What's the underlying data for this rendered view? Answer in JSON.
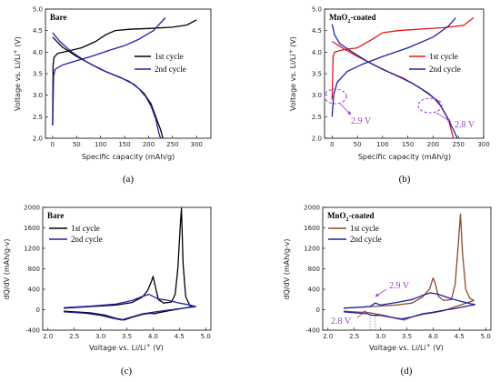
{
  "colors": {
    "black": "#000000",
    "blue": "#1f1fa8",
    "red": "#e01818",
    "brown": "#8b4a2b",
    "annotation": "#9b3fd0"
  },
  "chart_data": [
    {
      "type": "line",
      "panel_label": "(a)",
      "title": "Bare",
      "xlabel": "Specific capacity (mAh/g)",
      "ylabel": "Voltage vs. Li/Li+ (V)",
      "xlim": [
        -15,
        330
      ],
      "ylim": [
        2.0,
        5.0
      ],
      "xticks": [
        "0",
        "50",
        "100",
        "150",
        "200",
        "250",
        "300"
      ],
      "yticks": [
        "2.0",
        "2.5",
        "3.0",
        "3.5",
        "4.0",
        "4.5",
        "5.0"
      ],
      "legend_position": "right",
      "series": [
        {
          "name": "1st cycle",
          "color": "#000000",
          "charge": [
            [
              0,
              2.3
            ],
            [
              1,
              3.7
            ],
            [
              3,
              3.88
            ],
            [
              10,
              3.97
            ],
            [
              30,
              4.02
            ],
            [
              60,
              4.1
            ],
            [
              90,
              4.25
            ],
            [
              110,
              4.4
            ],
            [
              130,
              4.5
            ],
            [
              160,
              4.53
            ],
            [
              200,
              4.55
            ],
            [
              250,
              4.58
            ],
            [
              280,
              4.63
            ],
            [
              300,
              4.75
            ]
          ],
          "discharge": [
            [
              0,
              4.35
            ],
            [
              20,
              4.12
            ],
            [
              50,
              3.9
            ],
            [
              80,
              3.72
            ],
            [
              110,
              3.55
            ],
            [
              140,
              3.42
            ],
            [
              170,
              3.25
            ],
            [
              190,
              3.05
            ],
            [
              205,
              2.8
            ],
            [
              215,
              2.5
            ],
            [
              225,
              2.2
            ],
            [
              230,
              2.0
            ]
          ]
        },
        {
          "name": "2nd cycle",
          "color": "#1f1fa8",
          "charge": [
            [
              0,
              2.3
            ],
            [
              2,
              3.45
            ],
            [
              5,
              3.6
            ],
            [
              20,
              3.7
            ],
            [
              50,
              3.8
            ],
            [
              80,
              3.9
            ],
            [
              120,
              4.05
            ],
            [
              150,
              4.15
            ],
            [
              180,
              4.3
            ],
            [
              210,
              4.5
            ],
            [
              235,
              4.8
            ]
          ],
          "discharge": [
            [
              0,
              4.45
            ],
            [
              15,
              4.25
            ],
            [
              40,
              4.0
            ],
            [
              70,
              3.78
            ],
            [
              100,
              3.6
            ],
            [
              130,
              3.46
            ],
            [
              160,
              3.32
            ],
            [
              180,
              3.15
            ],
            [
              195,
              2.95
            ],
            [
              205,
              2.75
            ],
            [
              215,
              2.45
            ],
            [
              222,
              2.1
            ],
            [
              225,
              2.0
            ]
          ]
        }
      ]
    },
    {
      "type": "line",
      "panel_label": "(b)",
      "title": "MnO2-coated",
      "xlabel": "Specific capacity (mAh/g)",
      "ylabel": "Voltage vs. Li/Li+ (V)",
      "xlim": [
        -15,
        300
      ],
      "ylim": [
        2.0,
        5.0
      ],
      "xticks": [
        "0",
        "50",
        "100",
        "150",
        "200",
        "250",
        "300"
      ],
      "yticks": [
        "2.0",
        "2.5",
        "3.0",
        "3.5",
        "4.0",
        "4.5",
        "5.0"
      ],
      "legend_position": "right",
      "annotations": [
        "2.9 V",
        "2.8 V"
      ],
      "series": [
        {
          "name": "1st cycle",
          "color": "#e01818",
          "charge": [
            [
              0,
              2.9
            ],
            [
              2,
              3.9
            ],
            [
              5,
              4.0
            ],
            [
              20,
              4.05
            ],
            [
              50,
              4.1
            ],
            [
              80,
              4.3
            ],
            [
              100,
              4.45
            ],
            [
              130,
              4.5
            ],
            [
              170,
              4.53
            ],
            [
              220,
              4.57
            ],
            [
              260,
              4.62
            ],
            [
              280,
              4.8
            ]
          ],
          "discharge": [
            [
              0,
              4.25
            ],
            [
              20,
              4.1
            ],
            [
              50,
              3.9
            ],
            [
              80,
              3.72
            ],
            [
              110,
              3.55
            ],
            [
              140,
              3.4
            ],
            [
              170,
              3.2
            ],
            [
              200,
              2.95
            ],
            [
              215,
              2.75
            ],
            [
              230,
              2.45
            ],
            [
              240,
              2.0
            ]
          ]
        },
        {
          "name": "2nd cycle",
          "color": "#1f1fa8",
          "charge": [
            [
              0,
              2.5
            ],
            [
              3,
              3.0
            ],
            [
              10,
              3.3
            ],
            [
              30,
              3.55
            ],
            [
              60,
              3.72
            ],
            [
              100,
              3.9
            ],
            [
              150,
              4.1
            ],
            [
              200,
              4.35
            ],
            [
              230,
              4.6
            ],
            [
              245,
              4.8
            ]
          ],
          "discharge": [
            [
              0,
              4.65
            ],
            [
              5,
              4.4
            ],
            [
              15,
              4.2
            ],
            [
              40,
              4.0
            ],
            [
              70,
              3.78
            ],
            [
              100,
              3.6
            ],
            [
              130,
              3.44
            ],
            [
              160,
              3.27
            ],
            [
              190,
              3.05
            ],
            [
              210,
              2.85
            ],
            [
              225,
              2.55
            ],
            [
              240,
              2.2
            ],
            [
              248,
              2.0
            ]
          ]
        }
      ]
    },
    {
      "type": "line",
      "panel_label": "(c)",
      "title": "Bare",
      "xlabel": "Voltage vs. Li/Li+ (V)",
      "ylabel": "dQ/dV (mAh/g-v)",
      "xlim": [
        1.9,
        5.1
      ],
      "ylim": [
        -400,
        2000
      ],
      "xticks": [
        "2.0",
        "2.5",
        "3.0",
        "3.5",
        "4.0",
        "4.5",
        "5.0"
      ],
      "yticks": [
        "-400",
        "0",
        "400",
        "800",
        "1200",
        "1600",
        "2000"
      ],
      "legend_position": "left",
      "series": [
        {
          "name": "1st cycle",
          "color": "#000000",
          "charge": [
            [
              2.3,
              30
            ],
            [
              2.8,
              60
            ],
            [
              3.3,
              90
            ],
            [
              3.6,
              140
            ],
            [
              3.8,
              250
            ],
            [
              3.9,
              380
            ],
            [
              3.97,
              560
            ],
            [
              4.0,
              650
            ],
            [
              4.05,
              420
            ],
            [
              4.1,
              200
            ],
            [
              4.2,
              130
            ],
            [
              4.35,
              150
            ],
            [
              4.42,
              300
            ],
            [
              4.47,
              800
            ],
            [
              4.52,
              1700
            ],
            [
              4.54,
              1980
            ],
            [
              4.57,
              900
            ],
            [
              4.62,
              250
            ],
            [
              4.7,
              80
            ],
            [
              4.75,
              60
            ]
          ],
          "discharge": [
            [
              4.75,
              60
            ],
            [
              4.3,
              -20
            ],
            [
              4.1,
              -60
            ],
            [
              4.02,
              -80
            ],
            [
              3.95,
              -70
            ],
            [
              3.8,
              -90
            ],
            [
              3.6,
              -150
            ],
            [
              3.45,
              -200
            ],
            [
              3.3,
              -170
            ],
            [
              3.1,
              -110
            ],
            [
              2.8,
              -60
            ],
            [
              2.3,
              -30
            ]
          ]
        },
        {
          "name": "2nd cycle",
          "color": "#1f1fa8",
          "charge": [
            [
              2.3,
              40
            ],
            [
              2.8,
              70
            ],
            [
              3.3,
              110
            ],
            [
              3.6,
              180
            ],
            [
              3.8,
              260
            ],
            [
              3.92,
              300
            ],
            [
              4.0,
              260
            ],
            [
              4.1,
              210
            ],
            [
              4.3,
              180
            ],
            [
              4.5,
              130
            ],
            [
              4.7,
              90
            ],
            [
              4.82,
              60
            ]
          ],
          "discharge": [
            [
              4.82,
              60
            ],
            [
              4.5,
              20
            ],
            [
              4.2,
              -20
            ],
            [
              4.0,
              -50
            ],
            [
              3.8,
              -80
            ],
            [
              3.6,
              -140
            ],
            [
              3.4,
              -200
            ],
            [
              3.25,
              -170
            ],
            [
              3.0,
              -110
            ],
            [
              2.7,
              -70
            ],
            [
              2.3,
              -40
            ]
          ]
        }
      ]
    },
    {
      "type": "line",
      "panel_label": "(d)",
      "title": "MnO2-coated",
      "xlabel": "Voltage vs. Li/Li+ (V)",
      "ylabel": "dQ/dV (mAh/g-v)",
      "xlim": [
        1.9,
        5.1
      ],
      "ylim": [
        -400,
        2000
      ],
      "xticks": [
        "2.0",
        "2.5",
        "3.0",
        "3.5",
        "4.0",
        "4.5",
        "5.0"
      ],
      "yticks": [
        "-400",
        "0",
        "400",
        "800",
        "1200",
        "1600",
        "2000"
      ],
      "legend_position": "left",
      "annotations": [
        "2.9 V",
        "2.8 V"
      ],
      "series": [
        {
          "name": "1st cycle",
          "color": "#8b4a2b",
          "charge": [
            [
              2.3,
              30
            ],
            [
              2.8,
              60
            ],
            [
              3.3,
              90
            ],
            [
              3.6,
              130
            ],
            [
              3.8,
              250
            ],
            [
              3.93,
              400
            ],
            [
              4.0,
              620
            ],
            [
              4.04,
              520
            ],
            [
              4.1,
              260
            ],
            [
              4.2,
              180
            ],
            [
              4.35,
              200
            ],
            [
              4.42,
              500
            ],
            [
              4.48,
              1300
            ],
            [
              4.52,
              1870
            ],
            [
              4.56,
              1100
            ],
            [
              4.62,
              400
            ],
            [
              4.7,
              220
            ],
            [
              4.78,
              180
            ]
          ],
          "discharge": [
            [
              4.78,
              180
            ],
            [
              4.6,
              120
            ],
            [
              4.4,
              50
            ],
            [
              4.2,
              -20
            ],
            [
              4.0,
              -60
            ],
            [
              3.8,
              -90
            ],
            [
              3.6,
              -140
            ],
            [
              3.45,
              -200
            ],
            [
              3.3,
              -170
            ],
            [
              3.1,
              -120
            ],
            [
              2.9,
              -80
            ],
            [
              2.8,
              -60
            ],
            [
              2.3,
              -30
            ]
          ]
        },
        {
          "name": "2nd cycle",
          "color": "#1f1fa8",
          "charge": [
            [
              2.3,
              30
            ],
            [
              2.8,
              60
            ],
            [
              2.9,
              130
            ],
            [
              3.0,
              90
            ],
            [
              3.3,
              140
            ],
            [
              3.6,
              200
            ],
            [
              3.8,
              280
            ],
            [
              3.95,
              330
            ],
            [
              4.1,
              300
            ],
            [
              4.3,
              230
            ],
            [
              4.5,
              170
            ],
            [
              4.7,
              120
            ],
            [
              4.8,
              100
            ]
          ],
          "discharge": [
            [
              4.8,
              100
            ],
            [
              4.6,
              60
            ],
            [
              4.4,
              20
            ],
            [
              4.2,
              -10
            ],
            [
              4.0,
              -50
            ],
            [
              3.8,
              -80
            ],
            [
              3.6,
              -140
            ],
            [
              3.4,
              -180
            ],
            [
              3.2,
              -150
            ],
            [
              3.0,
              -110
            ],
            [
              2.85,
              -110
            ],
            [
              2.75,
              -80
            ],
            [
              2.5,
              -60
            ],
            [
              2.3,
              -40
            ]
          ]
        }
      ]
    }
  ]
}
